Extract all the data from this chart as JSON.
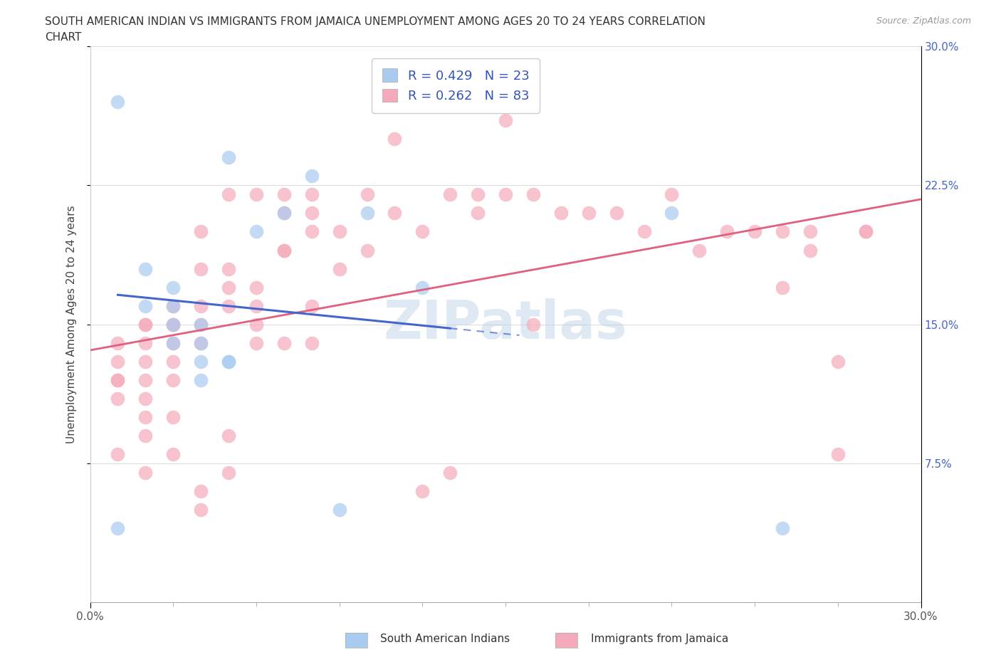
{
  "title_line1": "SOUTH AMERICAN INDIAN VS IMMIGRANTS FROM JAMAICA UNEMPLOYMENT AMONG AGES 20 TO 24 YEARS CORRELATION",
  "title_line2": "CHART",
  "source": "Source: ZipAtlas.com",
  "ylabel": "Unemployment Among Ages 20 to 24 years",
  "xlim": [
    0.0,
    0.3
  ],
  "ylim": [
    0.0,
    0.3
  ],
  "legend_label1": "South American Indians",
  "legend_label2": "Immigrants from Jamaica",
  "R1": 0.429,
  "N1": 23,
  "R2": 0.262,
  "N2": 83,
  "color1": "#aacbf0",
  "color2": "#f5aabb",
  "line1_color": "#4466cc",
  "line2_color": "#e06080",
  "watermark": "ZIPatlas",
  "blue_scatter": [
    [
      0.01,
      0.27
    ],
    [
      0.01,
      0.04
    ],
    [
      0.02,
      0.18
    ],
    [
      0.02,
      0.16
    ],
    [
      0.03,
      0.17
    ],
    [
      0.03,
      0.16
    ],
    [
      0.03,
      0.15
    ],
    [
      0.03,
      0.14
    ],
    [
      0.04,
      0.15
    ],
    [
      0.04,
      0.14
    ],
    [
      0.04,
      0.13
    ],
    [
      0.04,
      0.12
    ],
    [
      0.05,
      0.24
    ],
    [
      0.05,
      0.13
    ],
    [
      0.05,
      0.13
    ],
    [
      0.06,
      0.2
    ],
    [
      0.07,
      0.21
    ],
    [
      0.08,
      0.23
    ],
    [
      0.09,
      0.05
    ],
    [
      0.1,
      0.21
    ],
    [
      0.12,
      0.17
    ],
    [
      0.21,
      0.21
    ],
    [
      0.25,
      0.04
    ]
  ],
  "pink_scatter": [
    [
      0.01,
      0.14
    ],
    [
      0.01,
      0.13
    ],
    [
      0.01,
      0.12
    ],
    [
      0.01,
      0.12
    ],
    [
      0.01,
      0.11
    ],
    [
      0.02,
      0.15
    ],
    [
      0.02,
      0.15
    ],
    [
      0.02,
      0.14
    ],
    [
      0.02,
      0.13
    ],
    [
      0.02,
      0.12
    ],
    [
      0.02,
      0.11
    ],
    [
      0.02,
      0.1
    ],
    [
      0.02,
      0.09
    ],
    [
      0.03,
      0.16
    ],
    [
      0.03,
      0.15
    ],
    [
      0.03,
      0.15
    ],
    [
      0.03,
      0.14
    ],
    [
      0.03,
      0.13
    ],
    [
      0.03,
      0.12
    ],
    [
      0.03,
      0.1
    ],
    [
      0.04,
      0.2
    ],
    [
      0.04,
      0.18
    ],
    [
      0.04,
      0.16
    ],
    [
      0.04,
      0.15
    ],
    [
      0.04,
      0.14
    ],
    [
      0.04,
      0.06
    ],
    [
      0.04,
      0.05
    ],
    [
      0.05,
      0.22
    ],
    [
      0.05,
      0.18
    ],
    [
      0.05,
      0.17
    ],
    [
      0.05,
      0.16
    ],
    [
      0.05,
      0.09
    ],
    [
      0.05,
      0.07
    ],
    [
      0.06,
      0.22
    ],
    [
      0.06,
      0.17
    ],
    [
      0.06,
      0.16
    ],
    [
      0.06,
      0.15
    ],
    [
      0.06,
      0.14
    ],
    [
      0.07,
      0.22
    ],
    [
      0.07,
      0.21
    ],
    [
      0.07,
      0.19
    ],
    [
      0.07,
      0.19
    ],
    [
      0.07,
      0.14
    ],
    [
      0.08,
      0.22
    ],
    [
      0.08,
      0.21
    ],
    [
      0.08,
      0.2
    ],
    [
      0.08,
      0.16
    ],
    [
      0.08,
      0.14
    ],
    [
      0.09,
      0.2
    ],
    [
      0.09,
      0.18
    ],
    [
      0.1,
      0.22
    ],
    [
      0.1,
      0.19
    ],
    [
      0.11,
      0.25
    ],
    [
      0.11,
      0.21
    ],
    [
      0.12,
      0.2
    ],
    [
      0.12,
      0.06
    ],
    [
      0.13,
      0.22
    ],
    [
      0.13,
      0.07
    ],
    [
      0.14,
      0.22
    ],
    [
      0.14,
      0.21
    ],
    [
      0.15,
      0.22
    ],
    [
      0.15,
      0.26
    ],
    [
      0.16,
      0.22
    ],
    [
      0.16,
      0.15
    ],
    [
      0.17,
      0.21
    ],
    [
      0.18,
      0.21
    ],
    [
      0.19,
      0.21
    ],
    [
      0.2,
      0.2
    ],
    [
      0.21,
      0.22
    ],
    [
      0.22,
      0.19
    ],
    [
      0.23,
      0.2
    ],
    [
      0.24,
      0.2
    ],
    [
      0.25,
      0.2
    ],
    [
      0.25,
      0.17
    ],
    [
      0.26,
      0.19
    ],
    [
      0.26,
      0.2
    ],
    [
      0.27,
      0.13
    ],
    [
      0.27,
      0.08
    ],
    [
      0.28,
      0.2
    ],
    [
      0.28,
      0.2
    ],
    [
      0.01,
      0.08
    ],
    [
      0.02,
      0.07
    ],
    [
      0.03,
      0.08
    ]
  ]
}
